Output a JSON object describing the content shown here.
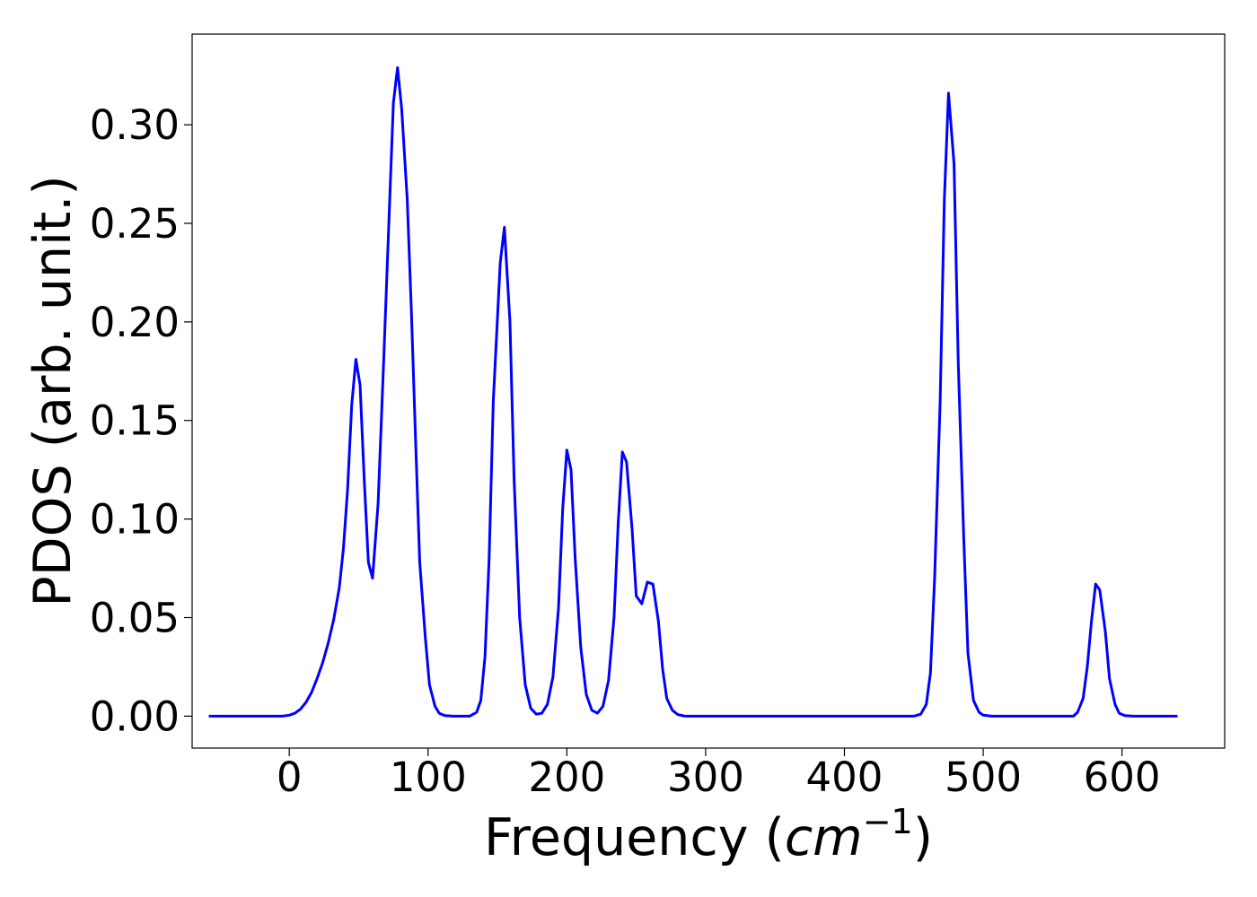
{
  "chart_data": {
    "type": "line",
    "title": "",
    "xlabel": "Frequency (",
    "xlabel_math": "cm",
    "xlabel_sup": "−1",
    "xlabel_close": ")",
    "ylabel": "PDOS (arb. unit.)",
    "xlim": [
      -70,
      674
    ],
    "ylim": [
      -0.0162,
      0.346
    ],
    "x_ticks": [
      0,
      100,
      200,
      300,
      400,
      500,
      600
    ],
    "x_tick_labels": [
      "0",
      "100",
      "200",
      "300",
      "400",
      "500",
      "600"
    ],
    "y_ticks": [
      0.0,
      0.05,
      0.1,
      0.15,
      0.2,
      0.25,
      0.3
    ],
    "y_tick_labels": [
      "0.00",
      "0.05",
      "0.10",
      "0.15",
      "0.20",
      "0.25",
      "0.30"
    ],
    "grid": false,
    "legend": "none",
    "line_color": "#0000ff",
    "series": [
      {
        "points": [
          [
            -58,
            0.0
          ],
          [
            -40,
            0.0
          ],
          [
            -20,
            0.0
          ],
          [
            -5,
            0.0
          ],
          [
            0,
            0.0005
          ],
          [
            4,
            0.0015
          ],
          [
            8,
            0.0035
          ],
          [
            12,
            0.007
          ],
          [
            16,
            0.012
          ],
          [
            20,
            0.019
          ],
          [
            24,
            0.027
          ],
          [
            28,
            0.037
          ],
          [
            32,
            0.049
          ],
          [
            36,
            0.065
          ],
          [
            39,
            0.085
          ],
          [
            42,
            0.115
          ],
          [
            45,
            0.158
          ],
          [
            48,
            0.181
          ],
          [
            51,
            0.168
          ],
          [
            54,
            0.12
          ],
          [
            57,
            0.078
          ],
          [
            60,
            0.07
          ],
          [
            64,
            0.108
          ],
          [
            68,
            0.18
          ],
          [
            72,
            0.255
          ],
          [
            75,
            0.311
          ],
          [
            78,
            0.329
          ],
          [
            81,
            0.308
          ],
          [
            85,
            0.262
          ],
          [
            88,
            0.205
          ],
          [
            91,
            0.14
          ],
          [
            94,
            0.078
          ],
          [
            98,
            0.04
          ],
          [
            101,
            0.016
          ],
          [
            105,
            0.005
          ],
          [
            108,
            0.0015
          ],
          [
            112,
            0.0003
          ],
          [
            118,
            0.0
          ],
          [
            130,
            0.0
          ],
          [
            135,
            0.002
          ],
          [
            138,
            0.008
          ],
          [
            141,
            0.03
          ],
          [
            144,
            0.08
          ],
          [
            147,
            0.16
          ],
          [
            152,
            0.23
          ],
          [
            155,
            0.248
          ],
          [
            159,
            0.2
          ],
          [
            162,
            0.12
          ],
          [
            166,
            0.05
          ],
          [
            170,
            0.016
          ],
          [
            174,
            0.004
          ],
          [
            178,
            0.001
          ],
          [
            182,
            0.0015
          ],
          [
            186,
            0.006
          ],
          [
            190,
            0.02
          ],
          [
            194,
            0.055
          ],
          [
            197,
            0.105
          ],
          [
            200,
            0.135
          ],
          [
            203,
            0.125
          ],
          [
            206,
            0.08
          ],
          [
            210,
            0.035
          ],
          [
            214,
            0.011
          ],
          [
            218,
            0.003
          ],
          [
            222,
            0.0015
          ],
          [
            226,
            0.005
          ],
          [
            230,
            0.018
          ],
          [
            234,
            0.05
          ],
          [
            237,
            0.098
          ],
          [
            240,
            0.134
          ],
          [
            243,
            0.129
          ],
          [
            247,
            0.095
          ],
          [
            250,
            0.061
          ],
          [
            254,
            0.057
          ],
          [
            258,
            0.068
          ],
          [
            262,
            0.067
          ],
          [
            266,
            0.048
          ],
          [
            269,
            0.024
          ],
          [
            272,
            0.009
          ],
          [
            276,
            0.003
          ],
          [
            280,
            0.0008
          ],
          [
            285,
            0.0
          ],
          [
            300,
            0.0
          ],
          [
            400,
            0.0
          ],
          [
            450,
            0.0
          ],
          [
            455,
            0.001
          ],
          [
            459,
            0.006
          ],
          [
            462,
            0.022
          ],
          [
            465,
            0.07
          ],
          [
            469,
            0.16
          ],
          [
            472,
            0.262
          ],
          [
            475,
            0.316
          ],
          [
            479,
            0.28
          ],
          [
            482,
            0.18
          ],
          [
            486,
            0.09
          ],
          [
            489,
            0.032
          ],
          [
            493,
            0.008
          ],
          [
            497,
            0.002
          ],
          [
            500,
            0.0005
          ],
          [
            506,
            0.0
          ],
          [
            540,
            0.0
          ],
          [
            565,
            0.0
          ],
          [
            568,
            0.002
          ],
          [
            572,
            0.009
          ],
          [
            575,
            0.025
          ],
          [
            578,
            0.048
          ],
          [
            581,
            0.067
          ],
          [
            584,
            0.064
          ],
          [
            588,
            0.043
          ],
          [
            591,
            0.019
          ],
          [
            595,
            0.006
          ],
          [
            598,
            0.0015
          ],
          [
            602,
            0.0003
          ],
          [
            608,
            0.0
          ],
          [
            640,
            0.0
          ]
        ]
      }
    ]
  }
}
